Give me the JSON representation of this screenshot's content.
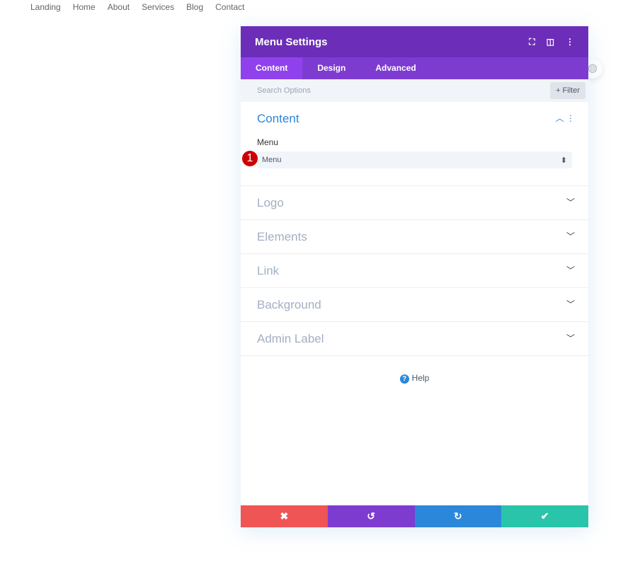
{
  "nav": [
    "Landing",
    "Home",
    "About",
    "Services",
    "Blog",
    "Contact"
  ],
  "modal": {
    "title": "Menu Settings",
    "tabs": [
      "Content",
      "Design",
      "Advanced"
    ],
    "search_placeholder": "Search Options",
    "filter": "+ Filter",
    "content_section": {
      "title": "Content",
      "field_label": "Menu",
      "select_value": "Menu",
      "badge": "1"
    },
    "sections": [
      "Logo",
      "Elements",
      "Link",
      "Background",
      "Admin Label"
    ],
    "help": "Help"
  },
  "colors": {
    "header": "#6c2eb9",
    "tabs": "#7e3bd0",
    "cancel": "#ef5555",
    "undo": "#7e3bd0",
    "redo": "#2b87da",
    "save": "#29c4a9"
  }
}
